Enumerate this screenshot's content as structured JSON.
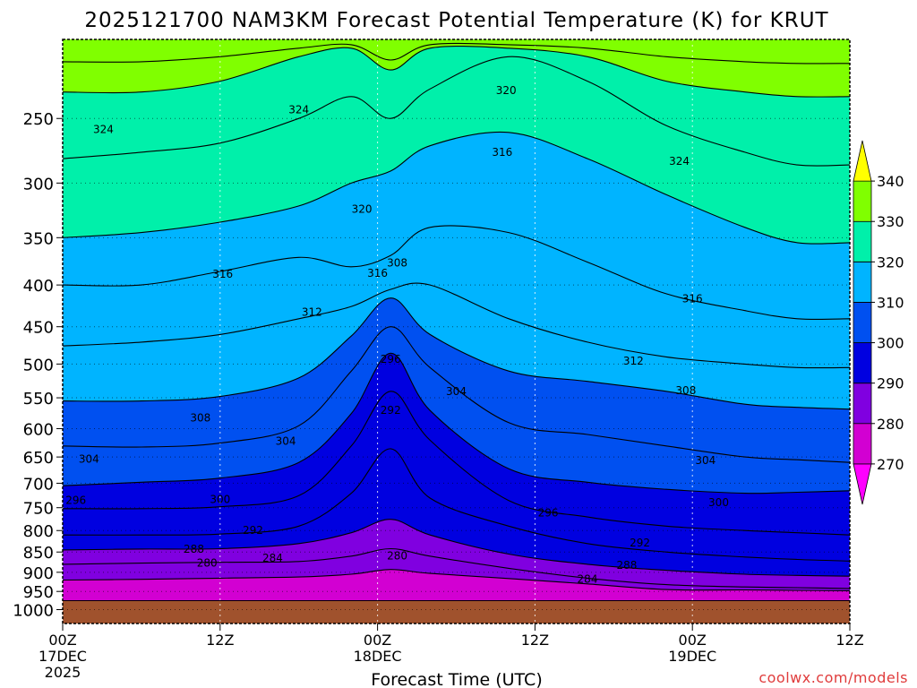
{
  "chart_data": {
    "type": "contour",
    "title": "2025121700 NAM3KM Forecast Potential Temperature (K) for KRUT",
    "xlabel": "Forecast Time (UTC)",
    "ylabel": "",
    "x_ticks": [
      {
        "hour": 0,
        "lines": [
          "00Z",
          "17DEC",
          "2025"
        ]
      },
      {
        "hour": 12,
        "lines": [
          "12Z"
        ]
      },
      {
        "hour": 24,
        "lines": [
          "00Z",
          "18DEC"
        ]
      },
      {
        "hour": 36,
        "lines": [
          "12Z"
        ]
      },
      {
        "hour": 48,
        "lines": [
          "00Z",
          "19DEC"
        ]
      },
      {
        "hour": 60,
        "lines": [
          "12Z"
        ]
      }
    ],
    "xlim": [
      0,
      60
    ],
    "y_ticks": [
      250,
      300,
      350,
      400,
      450,
      500,
      550,
      600,
      650,
      700,
      750,
      800,
      850,
      900,
      950,
      1000
    ],
    "ylim": [
      1040,
      200
    ],
    "colorbar": {
      "levels": [
        270,
        280,
        290,
        300,
        310,
        320,
        330,
        340
      ],
      "colors": [
        "#ff00ff",
        "#d200d2",
        "#8000e0",
        "#0000e0",
        "#0050f0",
        "#00b4ff",
        "#00f0aa",
        "#80ff00",
        "#ffff00"
      ],
      "extend": "both"
    },
    "isentropes": [
      {
        "value": 280,
        "points": [
          [
            0,
            920
          ],
          [
            6,
            918
          ],
          [
            12,
            915
          ],
          [
            18,
            912
          ],
          [
            22,
            905
          ],
          [
            25,
            893
          ],
          [
            28,
            903
          ],
          [
            34,
            916
          ],
          [
            40,
            930
          ],
          [
            46,
            945
          ],
          [
            52,
            946
          ],
          [
            56,
            947
          ],
          [
            60,
            948
          ]
        ]
      },
      {
        "value": 284,
        "points": [
          [
            0,
            880
          ],
          [
            6,
            877
          ],
          [
            12,
            875
          ],
          [
            18,
            873
          ],
          [
            22,
            860
          ],
          [
            25,
            842
          ],
          [
            28,
            860
          ],
          [
            34,
            890
          ],
          [
            40,
            915
          ],
          [
            46,
            932
          ],
          [
            52,
            938
          ],
          [
            56,
            940
          ],
          [
            60,
            942
          ]
        ]
      },
      {
        "value": 288,
        "points": [
          [
            0,
            845
          ],
          [
            6,
            843
          ],
          [
            12,
            842
          ],
          [
            18,
            830
          ],
          [
            22,
            805
          ],
          [
            25,
            775
          ],
          [
            28,
            810
          ],
          [
            34,
            855
          ],
          [
            40,
            880
          ],
          [
            46,
            895
          ],
          [
            52,
            905
          ],
          [
            56,
            908
          ],
          [
            60,
            910
          ]
        ]
      },
      {
        "value": 292,
        "points": [
          [
            0,
            810
          ],
          [
            6,
            810
          ],
          [
            12,
            808
          ],
          [
            18,
            790
          ],
          [
            22,
            720
          ],
          [
            25,
            635
          ],
          [
            28,
            730
          ],
          [
            34,
            790
          ],
          [
            40,
            830
          ],
          [
            46,
            850
          ],
          [
            52,
            862
          ],
          [
            56,
            868
          ],
          [
            60,
            872
          ]
        ]
      },
      {
        "value": 296,
        "points": [
          [
            0,
            752
          ],
          [
            6,
            752
          ],
          [
            12,
            748
          ],
          [
            18,
            725
          ],
          [
            22,
            630
          ],
          [
            25,
            540
          ],
          [
            28,
            620
          ],
          [
            34,
            735
          ],
          [
            40,
            770
          ],
          [
            46,
            790
          ],
          [
            52,
            800
          ],
          [
            56,
            805
          ],
          [
            60,
            810
          ]
        ]
      },
      {
        "value": 300,
        "points": [
          [
            0,
            705
          ],
          [
            6,
            698
          ],
          [
            12,
            690
          ],
          [
            18,
            660
          ],
          [
            22,
            575
          ],
          [
            25,
            485
          ],
          [
            28,
            570
          ],
          [
            34,
            672
          ],
          [
            40,
            698
          ],
          [
            46,
            712
          ],
          [
            52,
            720
          ],
          [
            56,
            718
          ],
          [
            60,
            715
          ]
        ]
      },
      {
        "value": 304,
        "points": [
          [
            0,
            630
          ],
          [
            6,
            632
          ],
          [
            12,
            625
          ],
          [
            18,
            595
          ],
          [
            22,
            510
          ],
          [
            25,
            450
          ],
          [
            28,
            505
          ],
          [
            34,
            590
          ],
          [
            40,
            610
          ],
          [
            46,
            630
          ],
          [
            52,
            650
          ],
          [
            56,
            655
          ],
          [
            60,
            660
          ]
        ]
      },
      {
        "value": 308,
        "points": [
          [
            0,
            555
          ],
          [
            6,
            555
          ],
          [
            12,
            548
          ],
          [
            18,
            520
          ],
          [
            22,
            462
          ],
          [
            25,
            415
          ],
          [
            28,
            460
          ],
          [
            34,
            510
          ],
          [
            40,
            525
          ],
          [
            46,
            540
          ],
          [
            52,
            560
          ],
          [
            56,
            565
          ],
          [
            60,
            568
          ]
        ]
      },
      {
        "value": 312,
        "points": [
          [
            0,
            475
          ],
          [
            6,
            470
          ],
          [
            12,
            460
          ],
          [
            18,
            440
          ],
          [
            22,
            425
          ],
          [
            25,
            405
          ],
          [
            28,
            400
          ],
          [
            34,
            440
          ],
          [
            40,
            470
          ],
          [
            46,
            490
          ],
          [
            52,
            500
          ],
          [
            56,
            505
          ],
          [
            60,
            505
          ]
        ]
      },
      {
        "value": 316,
        "points": [
          [
            0,
            400
          ],
          [
            6,
            400
          ],
          [
            12,
            385
          ],
          [
            18,
            370
          ],
          [
            22,
            380
          ],
          [
            25,
            368
          ],
          [
            28,
            340
          ],
          [
            34,
            345
          ],
          [
            40,
            375
          ],
          [
            46,
            410
          ],
          [
            52,
            430
          ],
          [
            56,
            440
          ],
          [
            60,
            440
          ]
        ]
      },
      {
        "value": 320,
        "points": [
          [
            0,
            350
          ],
          [
            6,
            345
          ],
          [
            12,
            335
          ],
          [
            18,
            320
          ],
          [
            22,
            300
          ],
          [
            25,
            290
          ],
          [
            28,
            270
          ],
          [
            34,
            260
          ],
          [
            40,
            280
          ],
          [
            46,
            310
          ],
          [
            52,
            340
          ],
          [
            56,
            355
          ],
          [
            60,
            355
          ]
        ]
      },
      {
        "value": 324,
        "points": [
          [
            0,
            280
          ],
          [
            6,
            275
          ],
          [
            12,
            268
          ],
          [
            18,
            250
          ],
          [
            22,
            235
          ],
          [
            25,
            250
          ],
          [
            28,
            230
          ],
          [
            34,
            210
          ],
          [
            40,
            225
          ],
          [
            46,
            255
          ],
          [
            52,
            275
          ],
          [
            56,
            285
          ],
          [
            60,
            285
          ]
        ]
      },
      {
        "value": 328,
        "points": [
          [
            0,
            232
          ],
          [
            6,
            232
          ],
          [
            12,
            225
          ],
          [
            18,
            210
          ],
          [
            22,
            205
          ],
          [
            25,
            218
          ],
          [
            28,
            205
          ],
          [
            34,
            205
          ],
          [
            40,
            210
          ],
          [
            46,
            225
          ],
          [
            52,
            232
          ],
          [
            56,
            235
          ],
          [
            60,
            235
          ]
        ]
      },
      {
        "value": 332,
        "points": [
          [
            0,
            213
          ],
          [
            6,
            213
          ],
          [
            12,
            210
          ],
          [
            18,
            205
          ],
          [
            22,
            203
          ],
          [
            25,
            212
          ],
          [
            28,
            203
          ],
          [
            34,
            203
          ],
          [
            40,
            205
          ],
          [
            46,
            210
          ],
          [
            52,
            213
          ],
          [
            56,
            214
          ],
          [
            60,
            214
          ]
        ]
      }
    ],
    "contour_labels": [
      {
        "text": "324",
        "hour": 3.1,
        "pres": 258
      },
      {
        "text": "324",
        "hour": 18.0,
        "pres": 244
      },
      {
        "text": "324",
        "hour": 47.0,
        "pres": 282
      },
      {
        "text": "320",
        "hour": 22.8,
        "pres": 323
      },
      {
        "text": "320",
        "hour": 33.8,
        "pres": 231
      },
      {
        "text": "316",
        "hour": 33.5,
        "pres": 275
      },
      {
        "text": "316",
        "hour": 12.2,
        "pres": 388
      },
      {
        "text": "316",
        "hour": 24.0,
        "pres": 387
      },
      {
        "text": "316",
        "hour": 48.0,
        "pres": 416
      },
      {
        "text": "312",
        "hour": 19.0,
        "pres": 432
      },
      {
        "text": "312",
        "hour": 43.5,
        "pres": 496
      },
      {
        "text": "308",
        "hour": 25.5,
        "pres": 376
      },
      {
        "text": "308",
        "hour": 10.5,
        "pres": 582
      },
      {
        "text": "308",
        "hour": 47.5,
        "pres": 539
      },
      {
        "text": "304",
        "hour": 30.0,
        "pres": 540
      },
      {
        "text": "304",
        "hour": 17.0,
        "pres": 622
      },
      {
        "text": "304",
        "hour": 2.0,
        "pres": 654
      },
      {
        "text": "304",
        "hour": 49.0,
        "pres": 656
      },
      {
        "text": "300",
        "hour": 12.0,
        "pres": 733
      },
      {
        "text": "300",
        "hour": 50.0,
        "pres": 739
      },
      {
        "text": "296",
        "hour": 1.0,
        "pres": 735
      },
      {
        "text": "296",
        "hour": 25.0,
        "pres": 493
      },
      {
        "text": "296",
        "hour": 37.0,
        "pres": 761
      },
      {
        "text": "292",
        "hour": 25.0,
        "pres": 570
      },
      {
        "text": "292",
        "hour": 14.5,
        "pres": 800
      },
      {
        "text": "292",
        "hour": 44.0,
        "pres": 828
      },
      {
        "text": "288",
        "hour": 10.0,
        "pres": 843
      },
      {
        "text": "288",
        "hour": 43.0,
        "pres": 882
      },
      {
        "text": "284",
        "hour": 16.0,
        "pres": 865
      },
      {
        "text": "284",
        "hour": 40.0,
        "pres": 918
      },
      {
        "text": "280",
        "hour": 11.0,
        "pres": 877
      },
      {
        "text": "280",
        "hour": 25.5,
        "pres": 859
      }
    ],
    "terrain_color": "#a0522d",
    "terrain_top_pressure": 975,
    "grid": true
  },
  "watermark": "coolwx.com/models",
  "watermark_color": "#e03c3c"
}
